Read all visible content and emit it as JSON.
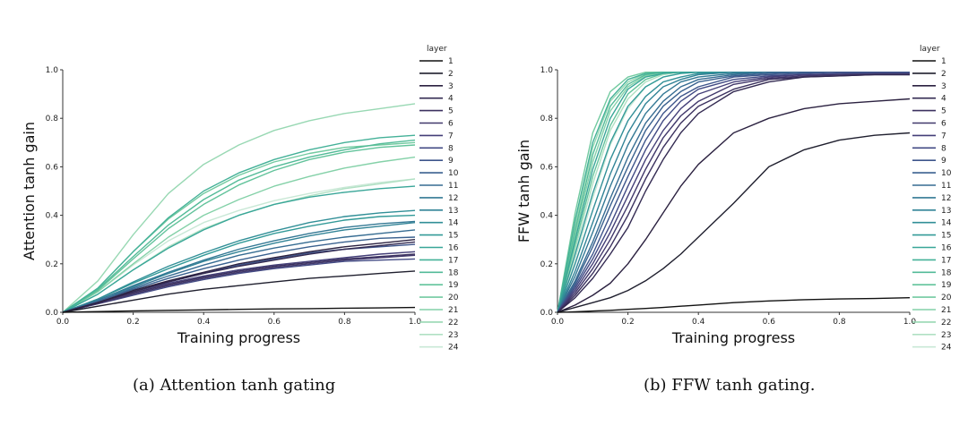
{
  "figure": {
    "captions": [
      "(a) Attention tanh gating",
      "(b) FFW tanh gating."
    ]
  },
  "chart_data": [
    {
      "type": "line",
      "title": "",
      "xlabel": "Training progress",
      "ylabel": "Attention tanh gain",
      "xlim": [
        0.0,
        1.0
      ],
      "ylim": [
        0.0,
        1.0
      ],
      "xticks": [
        0.0,
        0.2,
        0.4,
        0.6,
        0.8,
        1.0
      ],
      "yticks": [
        0.0,
        0.2,
        0.4,
        0.6,
        0.8,
        1.0
      ],
      "x": [
        0.0,
        0.1,
        0.2,
        0.3,
        0.4,
        0.5,
        0.6,
        0.7,
        0.8,
        0.9,
        1.0
      ],
      "legend_title": "layer",
      "series": [
        {
          "name": "1",
          "color": "#111111",
          "values": [
            0.0,
            0.003,
            0.006,
            0.008,
            0.01,
            0.012,
            0.014,
            0.015,
            0.017,
            0.018,
            0.02
          ]
        },
        {
          "name": "2",
          "color": "#1f1f2e",
          "values": [
            0.0,
            0.025,
            0.05,
            0.075,
            0.095,
            0.11,
            0.125,
            0.14,
            0.15,
            0.16,
            0.17
          ]
        },
        {
          "name": "3",
          "color": "#2b2140",
          "values": [
            0.0,
            0.04,
            0.09,
            0.13,
            0.165,
            0.2,
            0.225,
            0.25,
            0.27,
            0.285,
            0.3
          ]
        },
        {
          "name": "4",
          "color": "#332a52",
          "values": [
            0.0,
            0.04,
            0.085,
            0.125,
            0.16,
            0.19,
            0.215,
            0.24,
            0.26,
            0.275,
            0.29
          ]
        },
        {
          "name": "5",
          "color": "#3b315f",
          "values": [
            0.0,
            0.04,
            0.08,
            0.115,
            0.145,
            0.17,
            0.19,
            0.205,
            0.22,
            0.23,
            0.24
          ]
        },
        {
          "name": "6",
          "color": "#41386b",
          "values": [
            0.0,
            0.035,
            0.075,
            0.11,
            0.14,
            0.165,
            0.185,
            0.2,
            0.215,
            0.225,
            0.235
          ]
        },
        {
          "name": "7",
          "color": "#443f78",
          "values": [
            0.0,
            0.04,
            0.085,
            0.12,
            0.15,
            0.175,
            0.195,
            0.21,
            0.225,
            0.24,
            0.25
          ]
        },
        {
          "name": "8",
          "color": "#424a84",
          "values": [
            0.0,
            0.035,
            0.07,
            0.105,
            0.135,
            0.16,
            0.18,
            0.195,
            0.21,
            0.215,
            0.22
          ]
        },
        {
          "name": "9",
          "color": "#3e558b",
          "values": [
            0.0,
            0.04,
            0.085,
            0.125,
            0.16,
            0.195,
            0.22,
            0.245,
            0.26,
            0.27,
            0.28
          ]
        },
        {
          "name": "10",
          "color": "#3a618f",
          "values": [
            0.0,
            0.045,
            0.095,
            0.14,
            0.18,
            0.215,
            0.245,
            0.27,
            0.29,
            0.305,
            0.31
          ]
        },
        {
          "name": "11",
          "color": "#366c92",
          "values": [
            0.0,
            0.045,
            0.1,
            0.15,
            0.195,
            0.235,
            0.265,
            0.29,
            0.31,
            0.325,
            0.34
          ]
        },
        {
          "name": "12",
          "color": "#337894",
          "values": [
            0.0,
            0.05,
            0.11,
            0.165,
            0.215,
            0.26,
            0.295,
            0.325,
            0.35,
            0.365,
            0.375
          ]
        },
        {
          "name": "13",
          "color": "#318396",
          "values": [
            0.0,
            0.05,
            0.105,
            0.16,
            0.21,
            0.25,
            0.285,
            0.315,
            0.34,
            0.355,
            0.37
          ]
        },
        {
          "name": "14",
          "color": "#318f97",
          "values": [
            0.0,
            0.055,
            0.125,
            0.19,
            0.245,
            0.295,
            0.335,
            0.37,
            0.395,
            0.41,
            0.42
          ]
        },
        {
          "name": "15",
          "color": "#339a98",
          "values": [
            0.0,
            0.055,
            0.12,
            0.18,
            0.235,
            0.285,
            0.325,
            0.355,
            0.38,
            0.395,
            0.4
          ]
        },
        {
          "name": "16",
          "color": "#39a698",
          "values": [
            0.0,
            0.075,
            0.175,
            0.265,
            0.34,
            0.4,
            0.445,
            0.475,
            0.495,
            0.51,
            0.52
          ]
        },
        {
          "name": "17",
          "color": "#44b198",
          "values": [
            0.0,
            0.1,
            0.25,
            0.39,
            0.5,
            0.575,
            0.63,
            0.67,
            0.7,
            0.72,
            0.73
          ]
        },
        {
          "name": "18",
          "color": "#53bb98",
          "values": [
            0.0,
            0.095,
            0.23,
            0.36,
            0.465,
            0.545,
            0.6,
            0.64,
            0.67,
            0.695,
            0.71
          ]
        },
        {
          "name": "19",
          "color": "#62c39b",
          "values": [
            0.0,
            0.09,
            0.22,
            0.345,
            0.445,
            0.525,
            0.585,
            0.63,
            0.66,
            0.68,
            0.69
          ]
        },
        {
          "name": "20",
          "color": "#72caa0",
          "values": [
            0.0,
            0.1,
            0.25,
            0.385,
            0.49,
            0.565,
            0.62,
            0.655,
            0.68,
            0.69,
            0.7
          ]
        },
        {
          "name": "21",
          "color": "#84d1a8",
          "values": [
            0.0,
            0.085,
            0.2,
            0.31,
            0.4,
            0.465,
            0.52,
            0.56,
            0.595,
            0.62,
            0.64
          ]
        },
        {
          "name": "22",
          "color": "#98d8b3",
          "values": [
            0.0,
            0.13,
            0.32,
            0.49,
            0.61,
            0.69,
            0.75,
            0.79,
            0.82,
            0.84,
            0.86
          ]
        },
        {
          "name": "23",
          "color": "#b0e0c3",
          "values": [
            0.0,
            0.075,
            0.175,
            0.27,
            0.345,
            0.4,
            0.445,
            0.48,
            0.51,
            0.53,
            0.55
          ]
        },
        {
          "name": "24",
          "color": "#c9e8d6",
          "values": [
            0.0,
            0.085,
            0.195,
            0.295,
            0.37,
            0.42,
            0.46,
            0.49,
            0.515,
            0.535,
            0.55
          ]
        }
      ]
    },
    {
      "type": "line",
      "title": "",
      "xlabel": "Training progress",
      "ylabel": "FFW tanh gain",
      "xlim": [
        0.0,
        1.0
      ],
      "ylim": [
        0.0,
        1.0
      ],
      "xticks": [
        0.0,
        0.2,
        0.4,
        0.6,
        0.8,
        1.0
      ],
      "yticks": [
        0.0,
        0.2,
        0.4,
        0.6,
        0.8,
        1.0
      ],
      "x": [
        0.0,
        0.05,
        0.1,
        0.15,
        0.2,
        0.25,
        0.3,
        0.35,
        0.4,
        0.5,
        0.6,
        0.7,
        0.8,
        0.9,
        1.0
      ],
      "legend_title": "layer",
      "series": [
        {
          "name": "1",
          "color": "#111111",
          "values": [
            0.0,
            0.002,
            0.005,
            0.008,
            0.012,
            0.016,
            0.02,
            0.025,
            0.03,
            0.04,
            0.047,
            0.052,
            0.055,
            0.057,
            0.06
          ]
        },
        {
          "name": "2",
          "color": "#1f1f2e",
          "values": [
            0.0,
            0.02,
            0.04,
            0.06,
            0.09,
            0.13,
            0.18,
            0.24,
            0.31,
            0.45,
            0.6,
            0.67,
            0.71,
            0.73,
            0.74
          ]
        },
        {
          "name": "3",
          "color": "#2b2140",
          "values": [
            0.0,
            0.03,
            0.07,
            0.12,
            0.2,
            0.3,
            0.41,
            0.52,
            0.61,
            0.74,
            0.8,
            0.84,
            0.86,
            0.87,
            0.88
          ]
        },
        {
          "name": "4",
          "color": "#332a52",
          "values": [
            0.0,
            0.06,
            0.14,
            0.24,
            0.35,
            0.5,
            0.63,
            0.74,
            0.82,
            0.91,
            0.95,
            0.97,
            0.975,
            0.98,
            0.98
          ]
        },
        {
          "name": "5",
          "color": "#3b315f",
          "values": [
            0.0,
            0.07,
            0.16,
            0.27,
            0.4,
            0.55,
            0.68,
            0.78,
            0.85,
            0.92,
            0.96,
            0.97,
            0.975,
            0.98,
            0.98
          ]
        },
        {
          "name": "6",
          "color": "#41386b",
          "values": [
            0.0,
            0.08,
            0.18,
            0.3,
            0.44,
            0.59,
            0.72,
            0.81,
            0.87,
            0.94,
            0.965,
            0.975,
            0.98,
            0.98,
            0.98
          ]
        },
        {
          "name": "7",
          "color": "#443f78",
          "values": [
            0.0,
            0.09,
            0.2,
            0.33,
            0.48,
            0.63,
            0.75,
            0.84,
            0.9,
            0.95,
            0.97,
            0.98,
            0.98,
            0.985,
            0.985
          ]
        },
        {
          "name": "8",
          "color": "#424a84",
          "values": [
            0.0,
            0.1,
            0.22,
            0.36,
            0.52,
            0.67,
            0.79,
            0.87,
            0.92,
            0.96,
            0.975,
            0.98,
            0.985,
            0.985,
            0.985
          ]
        },
        {
          "name": "9",
          "color": "#3e558b",
          "values": [
            0.0,
            0.11,
            0.24,
            0.4,
            0.56,
            0.71,
            0.82,
            0.89,
            0.93,
            0.97,
            0.98,
            0.985,
            0.99,
            0.99,
            0.99
          ]
        },
        {
          "name": "10",
          "color": "#3a618f",
          "values": [
            0.0,
            0.12,
            0.27,
            0.44,
            0.6,
            0.75,
            0.85,
            0.91,
            0.95,
            0.975,
            0.985,
            0.99,
            0.99,
            0.99,
            0.99
          ]
        },
        {
          "name": "11",
          "color": "#366c92",
          "values": [
            0.0,
            0.13,
            0.29,
            0.47,
            0.64,
            0.78,
            0.87,
            0.93,
            0.96,
            0.98,
            0.99,
            0.99,
            0.99,
            0.99,
            0.99
          ]
        },
        {
          "name": "12",
          "color": "#337894",
          "values": [
            0.0,
            0.15,
            0.33,
            0.52,
            0.69,
            0.82,
            0.9,
            0.95,
            0.97,
            0.985,
            0.99,
            0.99,
            0.99,
            0.99,
            0.99
          ]
        },
        {
          "name": "13",
          "color": "#318396",
          "values": [
            0.0,
            0.17,
            0.37,
            0.57,
            0.74,
            0.86,
            0.93,
            0.96,
            0.98,
            0.99,
            0.99,
            0.99,
            0.99,
            0.99,
            0.99
          ]
        },
        {
          "name": "14",
          "color": "#318f97",
          "values": [
            0.0,
            0.2,
            0.42,
            0.63,
            0.79,
            0.89,
            0.95,
            0.97,
            0.985,
            0.99,
            0.99,
            0.99,
            0.99,
            0.99,
            0.99
          ]
        },
        {
          "name": "15",
          "color": "#339a98",
          "values": [
            0.0,
            0.24,
            0.49,
            0.7,
            0.85,
            0.93,
            0.97,
            0.985,
            0.99,
            0.99,
            0.99,
            0.99,
            0.99,
            0.99,
            0.99
          ]
        },
        {
          "name": "16",
          "color": "#39a698",
          "values": [
            0.0,
            0.3,
            0.59,
            0.8,
            0.92,
            0.97,
            0.985,
            0.99,
            0.99,
            0.99,
            0.99,
            0.99,
            0.99,
            0.99,
            0.99
          ]
        },
        {
          "name": "17",
          "color": "#44b198",
          "values": [
            0.0,
            0.38,
            0.7,
            0.88,
            0.96,
            0.985,
            0.99,
            0.99,
            0.99,
            0.99,
            0.99,
            0.99,
            0.99,
            0.99,
            0.99
          ]
        },
        {
          "name": "18",
          "color": "#53bb98",
          "values": [
            0.0,
            0.34,
            0.65,
            0.85,
            0.94,
            0.98,
            0.99,
            0.99,
            0.99,
            0.99,
            0.99,
            0.99,
            0.99,
            0.99,
            0.99
          ]
        },
        {
          "name": "19",
          "color": "#62c39b",
          "values": [
            0.0,
            0.28,
            0.56,
            0.77,
            0.9,
            0.96,
            0.985,
            0.99,
            0.99,
            0.99,
            0.99,
            0.99,
            0.99,
            0.99,
            0.99
          ]
        },
        {
          "name": "20",
          "color": "#72caa0",
          "values": [
            0.0,
            0.41,
            0.74,
            0.91,
            0.97,
            0.99,
            0.99,
            0.99,
            0.99,
            0.99,
            0.99,
            0.99,
            0.99,
            0.99,
            0.99
          ]
        },
        {
          "name": "21",
          "color": "#84d1a8",
          "values": [
            0.0,
            0.32,
            0.62,
            0.83,
            0.93,
            0.975,
            0.99,
            0.99,
            0.99,
            0.99,
            0.99,
            0.99,
            0.99,
            0.99,
            0.99
          ]
        },
        {
          "name": "22",
          "color": "#98d8b3",
          "values": [
            0.0,
            0.36,
            0.68,
            0.87,
            0.95,
            0.985,
            0.99,
            0.99,
            0.99,
            0.99,
            0.99,
            0.99,
            0.99,
            0.99,
            0.99
          ]
        },
        {
          "name": "23",
          "color": "#b0e0c3",
          "values": [
            0.0,
            0.26,
            0.53,
            0.75,
            0.88,
            0.95,
            0.98,
            0.99,
            0.99,
            0.99,
            0.99,
            0.99,
            0.99,
            0.99,
            0.99
          ]
        },
        {
          "name": "24",
          "color": "#c9e8d6",
          "values": [
            0.0,
            0.22,
            0.47,
            0.69,
            0.84,
            0.93,
            0.97,
            0.985,
            0.99,
            0.99,
            0.99,
            0.99,
            0.99,
            0.99,
            0.99
          ]
        }
      ]
    }
  ]
}
